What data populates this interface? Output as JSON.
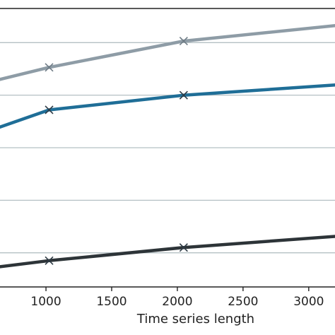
{
  "chart_data": {
    "type": "line",
    "xlabel": "Time series length",
    "ylabel": "",
    "title": "",
    "x_ticks": [
      1000,
      1500,
      2000,
      2500,
      3000
    ],
    "xlim": [
      650,
      3200
    ],
    "ylim": [
      0,
      5.3
    ],
    "y_gridlines": [
      0.65,
      1.65,
      2.65,
      3.65,
      4.65
    ],
    "grid": "horizontal",
    "marker": "x",
    "series": [
      {
        "color": "#8e9ca6",
        "x": [
          600,
          1024,
          2048,
          3300
        ],
        "y": [
          3.92,
          4.18,
          4.68,
          5.0
        ]
      },
      {
        "color": "#1f6e97",
        "x": [
          600,
          1024,
          2048,
          3300
        ],
        "y": [
          3.0,
          3.37,
          3.65,
          3.86
        ]
      },
      {
        "color": "#2d3438",
        "x": [
          600,
          1024,
          2048,
          3300
        ],
        "y": [
          0.37,
          0.5,
          0.75,
          0.98
        ]
      }
    ]
  }
}
